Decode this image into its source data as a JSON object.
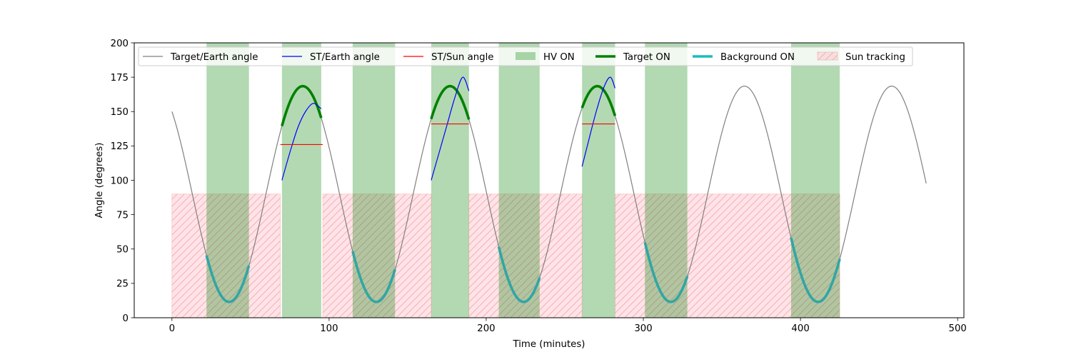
{
  "chart_data": {
    "type": "line",
    "title": "",
    "xlabel": "Time (minutes)",
    "ylabel": "Angle (degrees)",
    "xlim": [
      -24,
      504
    ],
    "ylim": [
      0,
      200
    ],
    "xticks": [
      0,
      100,
      200,
      300,
      400,
      500
    ],
    "yticks": [
      0,
      25,
      50,
      75,
      100,
      125,
      150,
      175,
      200
    ],
    "grid": false,
    "legend_position": "top, inside axes",
    "orbit_period_minutes": 93.7,
    "target_earth_angle": {
      "name": "Target/Earth angle",
      "color": "#808080",
      "x_range": [
        0,
        480
      ],
      "min": 11.5,
      "max": 168.5,
      "start_value": 150,
      "minima_x": [
        40,
        134,
        228,
        322,
        416
      ],
      "maxima_x": [
        87,
        181,
        275,
        369,
        463
      ]
    },
    "st_earth_angle": {
      "name": "ST/Earth angle",
      "color": "#0000ff",
      "segments": [
        {
          "x": [
            70,
            75,
            80,
            85,
            90,
            95
          ],
          "y": [
            100,
            120,
            138,
            150,
            156,
            152
          ]
        },
        {
          "x": [
            165,
            170,
            175,
            180,
            185,
            189
          ],
          "y": [
            100,
            120,
            140,
            160,
            175,
            165
          ]
        },
        {
          "x": [
            261,
            265,
            270,
            275,
            279,
            282
          ],
          "y": [
            110,
            128,
            150,
            168,
            175,
            167
          ]
        }
      ]
    },
    "st_sun_angle": {
      "name": "ST/Sun angle",
      "color": "#ff0000",
      "segments": [
        {
          "x": [
            69,
            96
          ],
          "y": 126
        },
        {
          "x": [
            165,
            189
          ],
          "y": 141
        },
        {
          "x": [
            261,
            282
          ],
          "y": 141
        }
      ]
    },
    "hv_on": {
      "name": "HV ON",
      "color": "#008000",
      "intervals": [
        [
          22,
          49
        ],
        [
          70,
          95
        ],
        [
          115,
          142
        ],
        [
          165,
          189
        ],
        [
          208,
          234
        ],
        [
          261,
          282
        ],
        [
          301,
          328
        ],
        [
          394,
          425
        ]
      ]
    },
    "target_on": {
      "name": "Target ON",
      "color": "#008000",
      "intervals": [
        [
          70,
          95
        ],
        [
          165,
          189
        ],
        [
          261,
          282
        ]
      ]
    },
    "background_on": {
      "name": "Background ON",
      "color": "#2ca5a5",
      "intervals": [
        [
          22,
          49
        ],
        [
          115,
          142
        ],
        [
          208,
          234
        ],
        [
          301,
          328
        ],
        [
          394,
          425
        ]
      ]
    },
    "sun_tracking": {
      "name": "Sun tracking",
      "color": "#ffc0cb",
      "hatch_color": "#f4a0a0",
      "y_range": [
        0,
        90
      ],
      "intervals": [
        [
          0,
          69
        ],
        [
          96,
          165
        ],
        [
          189,
          261
        ],
        [
          282,
          425
        ]
      ]
    }
  }
}
